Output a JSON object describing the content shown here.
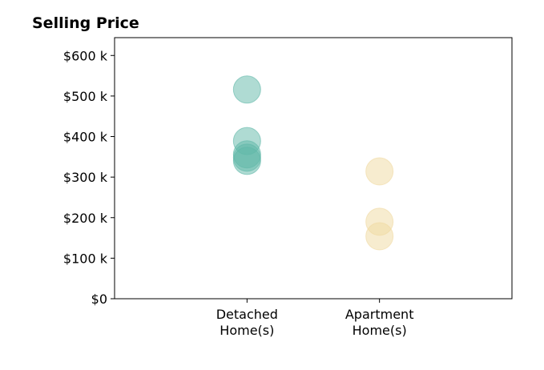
{
  "chart_data": {
    "type": "scatter",
    "title": "Selling Price",
    "series": [
      {
        "color": "#5fb8a8",
        "x": [
          1,
          1,
          1,
          1,
          1
        ],
        "values": [
          516,
          389,
          356,
          348,
          340
        ]
      },
      {
        "color": "#f0d9a0",
        "x": [
          2,
          2,
          2
        ],
        "values": [
          314,
          190,
          154
        ]
      }
    ],
    "xlim": [
      0,
      3
    ],
    "xticks": [
      {
        "value": 1,
        "label": "Detached\nHome(s)"
      },
      {
        "value": 2,
        "label": "Apartment\nHome(s)"
      }
    ],
    "ylim": [
      0,
      644
    ],
    "yticks": [
      {
        "value": 0,
        "label": "$0"
      },
      {
        "value": 100,
        "label": "$100 k"
      },
      {
        "value": 200,
        "label": "$200 k"
      },
      {
        "value": 300,
        "label": "$300 k"
      },
      {
        "value": 400,
        "label": "$400 k"
      },
      {
        "value": 500,
        "label": "$500 k"
      },
      {
        "value": 600,
        "label": "$600 k"
      }
    ]
  }
}
